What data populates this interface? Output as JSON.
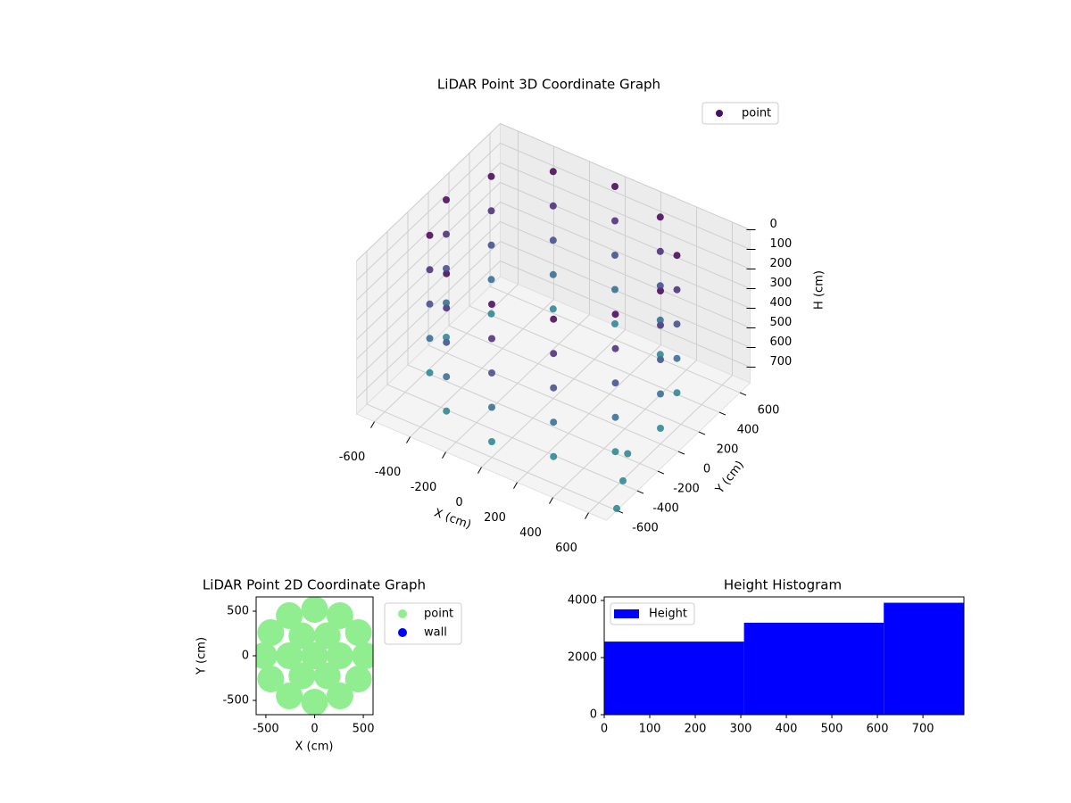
{
  "chart_data": [
    {
      "type": "scatter3d",
      "title": "LiDAR Point 3D Coordinate Graph",
      "xlabel": "X (cm)",
      "ylabel": "Y (cm)",
      "zlabel": "H (cm)",
      "xlim": [
        -700,
        700
      ],
      "ylim": [
        -700,
        700
      ],
      "zlim": [
        0,
        780
      ],
      "z_inverted": true,
      "xticks": [
        -600,
        -400,
        -200,
        0,
        200,
        400,
        600
      ],
      "yticks": [
        -600,
        -400,
        -200,
        0,
        200,
        400,
        600
      ],
      "zticks": [
        0,
        100,
        200,
        300,
        400,
        500,
        600,
        700
      ],
      "colormap": "viridis",
      "grid": true,
      "legend": "upper right",
      "series": [
        {
          "name": "point",
          "color": "#46135f",
          "x": [
            600,
            520,
            300,
            0,
            -300,
            -520,
            -600,
            -520,
            -300,
            0,
            300,
            520,
            600,
            520,
            300,
            0,
            -300,
            -520,
            -600,
            -520,
            -300,
            0,
            300,
            520,
            600,
            520,
            300,
            0,
            -300,
            -520,
            -600,
            -520,
            -300,
            0,
            300,
            520,
            600,
            520,
            300,
            0,
            -300,
            -520,
            -600,
            -520,
            -300,
            0,
            300,
            520,
            600,
            520,
            300,
            0,
            -300,
            -520,
            -600,
            -520,
            -300,
            0,
            300,
            520,
            560,
            620,
            700
          ],
          "y": [
            0,
            300,
            520,
            600,
            520,
            300,
            0,
            -300,
            -520,
            -600,
            -520,
            -300,
            0,
            300,
            520,
            600,
            520,
            300,
            0,
            -300,
            -520,
            -600,
            -520,
            -300,
            0,
            300,
            520,
            600,
            520,
            300,
            0,
            -300,
            -520,
            -600,
            -520,
            -300,
            0,
            300,
            520,
            600,
            520,
            300,
            0,
            -300,
            -520,
            -600,
            -520,
            -300,
            0,
            300,
            520,
            600,
            520,
            300,
            0,
            -300,
            -520,
            -600,
            -520,
            -300,
            -250,
            -400,
            -600
          ],
          "z": [
            0,
            0,
            0,
            0,
            0,
            0,
            0,
            0,
            0,
            0,
            0,
            0,
            175,
            175,
            175,
            175,
            175,
            175,
            175,
            175,
            175,
            175,
            175,
            175,
            350,
            350,
            350,
            350,
            350,
            350,
            350,
            350,
            350,
            350,
            350,
            350,
            525,
            525,
            525,
            525,
            525,
            525,
            525,
            525,
            525,
            525,
            525,
            525,
            700,
            700,
            700,
            700,
            700,
            700,
            700,
            700,
            700,
            700,
            700,
            700,
            720,
            760,
            770
          ]
        }
      ]
    },
    {
      "type": "scatter",
      "title": "LiDAR Point 2D Coordinate Graph",
      "xlabel": "X (cm)",
      "ylabel": "Y (cm)",
      "xlim": [
        -600,
        600
      ],
      "ylim": [
        -660,
        660
      ],
      "xticks": [
        -500,
        0,
        500
      ],
      "yticks": [
        -500,
        0,
        500
      ],
      "legend": "outside right",
      "series": [
        {
          "name": "point",
          "color": "#90ee90",
          "x": [
            520,
            450,
            260,
            0,
            -260,
            -450,
            -520,
            -450,
            -260,
            0,
            260,
            450,
            260,
            130,
            -130,
            -260,
            -130,
            130,
            0
          ],
          "y": [
            0,
            260,
            450,
            520,
            450,
            260,
            0,
            -260,
            -450,
            -520,
            -450,
            -260,
            0,
            225,
            225,
            0,
            -225,
            -225,
            0
          ]
        },
        {
          "name": "wall",
          "color": "#0000ff",
          "x": [],
          "y": []
        }
      ]
    },
    {
      "type": "histogram",
      "title": "Height Histogram",
      "name": "Height",
      "color": "#0000ff",
      "bins": [
        0,
        307,
        614,
        921
      ],
      "counts": [
        2560,
        3220,
        3920
      ],
      "xlim": [
        0,
        790
      ],
      "ylim": [
        0,
        4125
      ],
      "xticks": [
        0,
        100,
        200,
        300,
        400,
        500,
        600,
        700
      ],
      "yticks": [
        0,
        2000,
        4000
      ],
      "legend": "upper left"
    }
  ]
}
